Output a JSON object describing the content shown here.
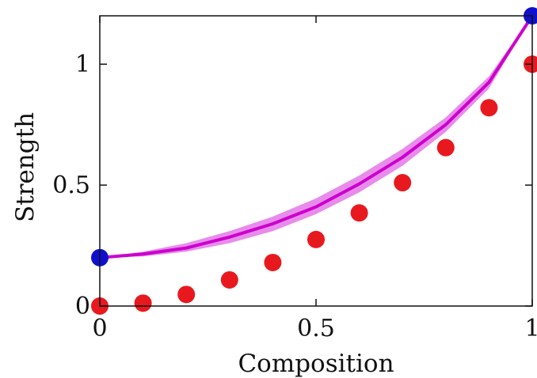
{
  "chart_data": {
    "type": "scatter",
    "xlabel": "Composition",
    "ylabel": "Strength",
    "xlim": [
      0,
      1
    ],
    "ylim": [
      0,
      1.2
    ],
    "xticks": [
      0,
      0.5,
      1
    ],
    "xtick_labels": [
      "0",
      "0.5",
      "1"
    ],
    "yticks": [
      0,
      0.5,
      1
    ],
    "ytick_labels": [
      "0",
      "0.5",
      "1"
    ],
    "grid": false,
    "series": [
      {
        "kind": "band",
        "color": "#e066e6",
        "x": [
          0,
          0.1,
          0.2,
          0.3,
          0.4,
          0.5,
          0.6,
          0.7,
          0.8,
          0.9,
          1.0
        ],
        "lower": [
          0.2,
          0.205,
          0.225,
          0.26,
          0.31,
          0.38,
          0.47,
          0.58,
          0.72,
          0.9,
          1.2
        ],
        "upper": [
          0.2,
          0.225,
          0.26,
          0.31,
          0.37,
          0.445,
          0.54,
          0.65,
          0.78,
          0.95,
          1.2
        ]
      },
      {
        "kind": "line",
        "color": "#cc00cc",
        "x": [
          0,
          0.1,
          0.2,
          0.3,
          0.4,
          0.5,
          0.6,
          0.7,
          0.8,
          0.9,
          1.0
        ],
        "y": [
          0.2,
          0.215,
          0.24,
          0.285,
          0.34,
          0.41,
          0.505,
          0.615,
          0.75,
          0.925,
          1.2
        ]
      },
      {
        "kind": "points",
        "color": "#1010cc",
        "x": [
          0,
          1
        ],
        "y": [
          0.2,
          1.2
        ]
      },
      {
        "kind": "points",
        "color": "#e8191e",
        "x": [
          0,
          0.1,
          0.2,
          0.3,
          0.4,
          0.5,
          0.6,
          0.7,
          0.8,
          0.9,
          1.0
        ],
        "y": [
          0.0,
          0.012,
          0.048,
          0.108,
          0.18,
          0.275,
          0.385,
          0.51,
          0.655,
          0.82,
          1.0
        ]
      }
    ]
  }
}
